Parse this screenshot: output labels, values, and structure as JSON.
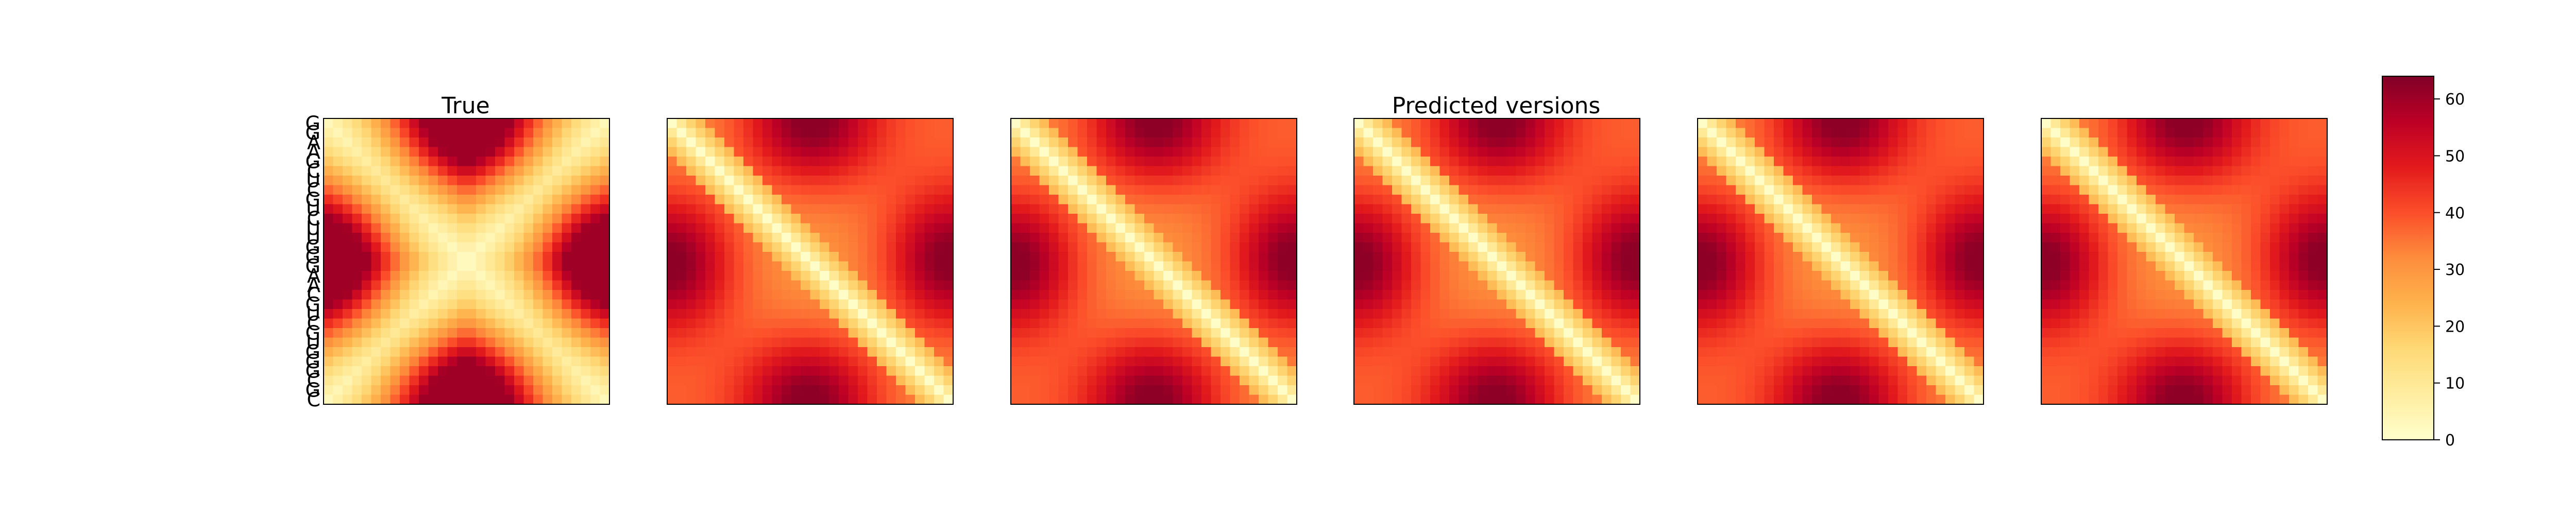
{
  "figure": {
    "title_true": "True",
    "title_predicted": "Predicted versions"
  },
  "chart_data": {
    "type": "heatmap",
    "colormap": "YlOrRd",
    "vmin": 0,
    "vmax": 64,
    "matrix_size": 30,
    "panels": [
      {
        "title": "True",
        "variant": "true"
      },
      {
        "title": "",
        "variant": "pred"
      },
      {
        "title": "",
        "variant": "pred"
      },
      {
        "title": "Predicted versions",
        "variant": "pred"
      },
      {
        "title": "",
        "variant": "pred"
      },
      {
        "title": "",
        "variant": "pred"
      }
    ],
    "sequence": [
      "G",
      "G",
      "A",
      "A",
      "G",
      "C",
      "U",
      "C",
      "G",
      "U",
      "C",
      "U",
      "U",
      "G",
      "G",
      "G",
      "A",
      "A",
      "C",
      "G",
      "U",
      "C",
      "G",
      "U",
      "G",
      "G",
      "G",
      "C",
      "G",
      "C"
    ],
    "colorbar": {
      "ticks": [
        0,
        10,
        20,
        30,
        40,
        50,
        60
      ],
      "tick_labels": [
        "0",
        "10",
        "20",
        "30",
        "40",
        "50",
        "60"
      ]
    }
  },
  "colors": {
    "low": "#ffffcc",
    "high": "#800026"
  }
}
